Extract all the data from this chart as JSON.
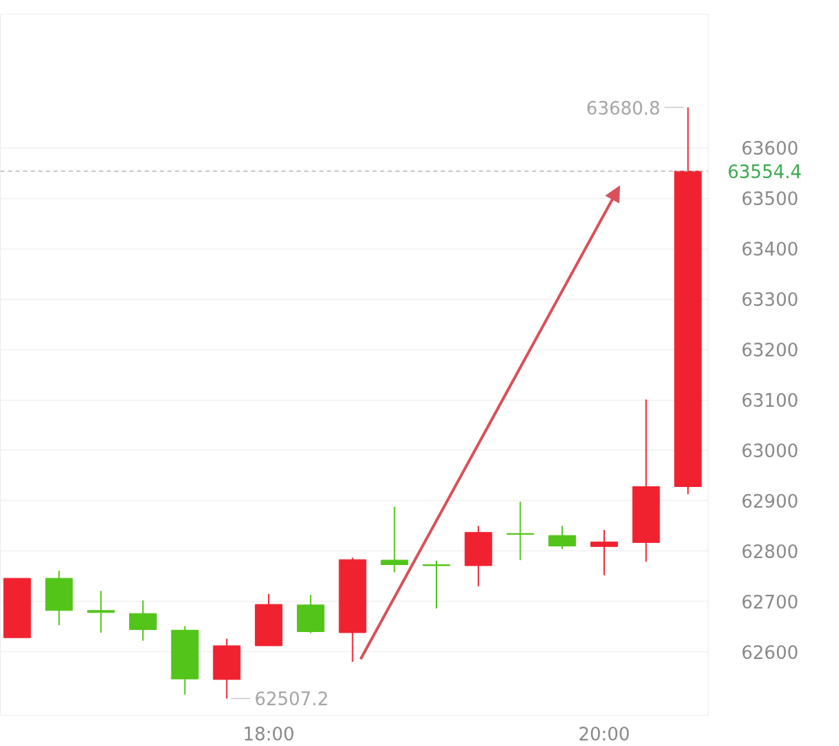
{
  "chart_data": {
    "type": "candlestick",
    "x": [
      16.5,
      16.75,
      17.0,
      17.25,
      17.5,
      17.75,
      18.0,
      18.25,
      18.5,
      18.75,
      19.0,
      19.25,
      19.5,
      19.75,
      20.0,
      20.25,
      20.5
    ],
    "ohlc": [
      [
        62628,
        62746,
        62628,
        62746
      ],
      [
        62746,
        62761,
        62653,
        62682
      ],
      [
        62682,
        62721,
        62638,
        62678
      ],
      [
        62676,
        62702,
        62622,
        62644
      ],
      [
        62643,
        62651,
        62515,
        62546
      ],
      [
        62545,
        62626,
        62507.2,
        62612
      ],
      [
        62612,
        62715,
        62612,
        62694
      ],
      [
        62693,
        62713,
        62637,
        62640
      ],
      [
        62638,
        62787,
        62580,
        62783
      ],
      [
        62782,
        62888,
        62758,
        62773
      ],
      [
        62773,
        62781,
        62686,
        62771
      ],
      [
        62771,
        62850,
        62730,
        62837
      ],
      [
        62835,
        62898,
        62782,
        62833
      ],
      [
        62831,
        62850,
        62804,
        62810
      ],
      [
        62809,
        62842,
        62752,
        62818
      ],
      [
        62817,
        63101,
        62779,
        62928
      ],
      [
        62928,
        63680.8,
        62913,
        63554.4
      ]
    ],
    "colors": [
      "#f0222f",
      "#52c41a",
      "#52c41a",
      "#52c41a",
      "#52c41a",
      "#f0222f",
      "#f0222f",
      "#52c41a",
      "#f0222f",
      "#52c41a",
      "#52c41a",
      "#f0222f",
      "#52c41a",
      "#52c41a",
      "#f0222f",
      "#f0222f",
      "#f0222f"
    ],
    "xlim": [
      16.4,
      20.62
    ],
    "ylim": [
      62474,
      63866
    ],
    "xticks": [
      {
        "value": 18,
        "label": "18:00"
      },
      {
        "value": 20,
        "label": "20:00"
      }
    ],
    "yticks": [
      62600,
      62700,
      62800,
      62900,
      63000,
      63100,
      63200,
      63300,
      63400,
      63500,
      63600
    ],
    "grid": "y",
    "ref_lines": [
      {
        "axis": "y",
        "value": 63554.4,
        "label": "63554.4",
        "color": "#b0b0b0",
        "line_style": "dashed"
      }
    ],
    "annotations": [
      {
        "text": "63680.8",
        "x": 20.5,
        "y": 63680.8
      },
      {
        "text": "62507.2",
        "x": 17.75,
        "y": 62507.2
      }
    ]
  }
}
